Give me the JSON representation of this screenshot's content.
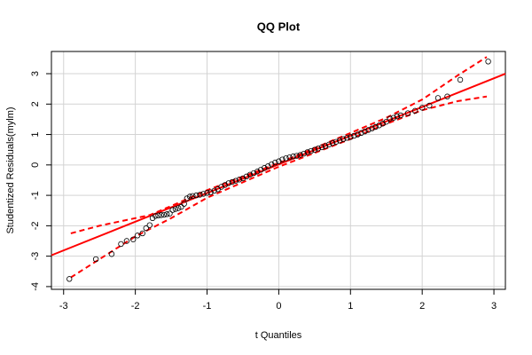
{
  "chart_data": {
    "type": "scatter",
    "title": "QQ Plot",
    "x_label": "t Quantiles",
    "y_label": "Studentized Residuals(mylm)",
    "xlim": [
      -3.17,
      3.16
    ],
    "ylim": [
      -4.09,
      3.73
    ],
    "xticks": [
      -3,
      -2,
      -1,
      0,
      1,
      2,
      3
    ],
    "yticks": [
      -4,
      -3,
      -2,
      -1,
      0,
      1,
      2,
      3
    ],
    "grid": true,
    "points": {
      "color": "#000000",
      "x": [
        -2.92,
        -2.55,
        -2.33,
        -2.2,
        -2.12,
        -2.03,
        -1.97,
        -1.9,
        -1.85,
        -1.8,
        -1.76,
        -1.72,
        -1.68,
        -1.64,
        -1.6,
        -1.56,
        -1.52,
        -1.48,
        -1.44,
        -1.4,
        -1.36,
        -1.32,
        -1.28,
        -1.24,
        -1.2,
        -1.15,
        -1.1,
        -1.05,
        -1.0,
        -0.95,
        -0.9,
        -0.85,
        -0.8,
        -0.75,
        -0.7,
        -0.65,
        -0.6,
        -0.55,
        -0.5,
        -0.45,
        -0.4,
        -0.35,
        -0.3,
        -0.25,
        -0.2,
        -0.15,
        -0.1,
        -0.05,
        0.0,
        0.05,
        0.1,
        0.15,
        0.2,
        0.25,
        0.3,
        0.35,
        0.4,
        0.45,
        0.5,
        0.55,
        0.6,
        0.65,
        0.7,
        0.75,
        0.8,
        0.85,
        0.9,
        0.95,
        1.0,
        1.05,
        1.1,
        1.15,
        1.2,
        1.25,
        1.3,
        1.35,
        1.4,
        1.45,
        1.5,
        1.55,
        1.6,
        1.65,
        1.7,
        1.8,
        1.9,
        2.0,
        2.1,
        2.22,
        2.35,
        2.53,
        2.92
      ],
      "y": [
        -3.75,
        -3.1,
        -2.93,
        -2.6,
        -2.5,
        -2.45,
        -2.32,
        -2.25,
        -2.08,
        -1.98,
        -1.75,
        -1.68,
        -1.66,
        -1.65,
        -1.64,
        -1.62,
        -1.6,
        -1.48,
        -1.45,
        -1.42,
        -1.38,
        -1.28,
        -1.1,
        -1.04,
        -1.02,
        -1.0,
        -0.98,
        -0.95,
        -0.92,
        -0.9,
        -0.85,
        -0.8,
        -0.72,
        -0.66,
        -0.6,
        -0.56,
        -0.52,
        -0.48,
        -0.44,
        -0.38,
        -0.32,
        -0.27,
        -0.22,
        -0.16,
        -0.1,
        -0.04,
        0.02,
        0.08,
        0.12,
        0.18,
        0.22,
        0.25,
        0.28,
        0.3,
        0.33,
        0.37,
        0.42,
        0.46,
        0.5,
        0.54,
        0.58,
        0.62,
        0.67,
        0.72,
        0.76,
        0.8,
        0.85,
        0.89,
        0.92,
        0.96,
        1.0,
        1.05,
        1.1,
        1.15,
        1.2,
        1.25,
        1.3,
        1.36,
        1.42,
        1.52,
        1.55,
        1.6,
        1.63,
        1.7,
        1.78,
        1.88,
        1.95,
        2.2,
        2.25,
        2.8,
        3.4
      ]
    },
    "fit_line": {
      "color": "#ff0000",
      "x": [
        -3.17,
        3.16
      ],
      "y": [
        -2.97,
        3.0
      ]
    },
    "bands": [
      {
        "color": "#ff0000",
        "x": [
          -2.9,
          -2.5,
          -2.0,
          -1.8,
          -1.5,
          -1.0,
          0.0,
          1.0,
          1.5,
          2.0,
          2.5,
          2.9
        ],
        "y": [
          -2.25,
          -2.0,
          -1.75,
          -1.65,
          -1.35,
          -0.83,
          0.06,
          1.05,
          1.55,
          2.15,
          2.95,
          3.55
        ]
      },
      {
        "color": "#ff0000",
        "x": [
          -2.9,
          -2.5,
          -2.0,
          -1.5,
          -1.0,
          0.0,
          1.0,
          1.5,
          2.0,
          2.5,
          2.9
        ],
        "y": [
          -3.7,
          -3.1,
          -2.35,
          -1.75,
          -1.08,
          -0.06,
          0.85,
          1.35,
          1.8,
          2.1,
          2.25
        ]
      }
    ]
  }
}
